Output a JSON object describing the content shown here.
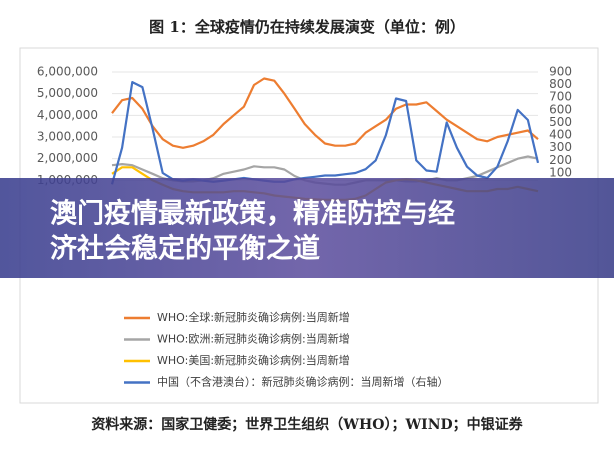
{
  "chart_data": {
    "type": "line",
    "title": "图 1：全球疫情仍在持续发展演变（单位：例）",
    "categories": [
      null,
      null,
      null,
      null,
      null,
      null,
      null,
      null,
      null,
      null,
      null,
      null,
      null,
      null,
      null,
      null,
      null,
      null,
      null,
      null,
      null,
      null,
      null,
      null,
      null,
      null,
      null,
      null,
      null,
      null,
      null,
      null,
      null,
      null,
      null,
      null,
      null,
      null,
      null,
      null,
      null,
      null,
      null
    ],
    "series": [
      {
        "name": "WHO:全球:新冠肺炎确诊病例:当周新增",
        "color": "#ed7d31",
        "values": [
          4100000,
          4700000,
          4800000,
          4300000,
          3500000,
          2900000,
          2600000,
          2500000,
          2600000,
          2800000,
          3100000,
          3600000,
          4000000,
          4400000,
          5400000,
          5700000,
          5600000,
          5000000,
          4300000,
          3600000,
          3100000,
          2700000,
          2600000,
          2600000,
          2700000,
          3200000,
          3500000,
          3800000,
          4300000,
          4500000,
          4500000,
          4600000,
          4200000,
          3800000,
          3500000,
          3200000,
          2900000,
          2800000,
          3000000,
          3100000,
          3200000,
          3300000,
          2900000
        ]
      },
      {
        "name": "WHO:欧洲:新冠肺炎确诊病例:当周新增",
        "color": "#a5a5a5",
        "values": [
          1700000,
          1750000,
          1700000,
          1500000,
          1300000,
          1100000,
          1000000,
          950000,
          950000,
          1000000,
          1100000,
          1300000,
          1400000,
          1500000,
          1650000,
          1600000,
          1600000,
          1500000,
          1200000,
          1000000,
          900000,
          850000,
          800000,
          800000,
          900000,
          1000000,
          1000000,
          1000000,
          1000000,
          950000,
          950000,
          1000000,
          1100000,
          1000000,
          1000000,
          1100000,
          1200000,
          1400000,
          1600000,
          1800000,
          2000000,
          2100000,
          2000000
        ]
      },
      {
        "name": "WHO:美国:新冠肺炎确诊病例:当周新增",
        "color": "#ffc000",
        "values": [
          1300000,
          1600000,
          1600000,
          1300000,
          1000000,
          800000,
          600000,
          500000,
          450000,
          450000,
          450000,
          450000,
          500000,
          500000,
          450000,
          400000,
          300000,
          250000,
          200000,
          150000,
          120000,
          100000,
          100000,
          100000,
          150000,
          300000,
          600000,
          900000,
          1000000,
          1050000,
          1000000,
          900000,
          800000,
          700000,
          600000,
          500000,
          500000,
          500000,
          600000,
          600000,
          700000,
          600000,
          500000
        ]
      },
      {
        "name": "中国（不含港澳台）：新冠肺炎确诊病例：当周新增（右轴）",
        "color": "#4472c4",
        "axis": "y2",
        "values": [
          10,
          300,
          820,
          780,
          450,
          100,
          50,
          40,
          50,
          40,
          30,
          40,
          50,
          60,
          50,
          40,
          30,
          30,
          50,
          60,
          70,
          80,
          80,
          90,
          100,
          130,
          200,
          400,
          690,
          670,
          200,
          120,
          110,
          500,
          300,
          150,
          80,
          60,
          150,
          350,
          600,
          520,
          180
        ]
      }
    ],
    "ylim": [
      0,
      6000000
    ],
    "yticks": [
      {
        "value": 1000000,
        "label": "1,000,000"
      },
      {
        "value": 2000000,
        "label": "2,000,000"
      },
      {
        "value": 3000000,
        "label": "3,000,000"
      },
      {
        "value": 4000000,
        "label": "4,000,000"
      },
      {
        "value": 5000000,
        "label": "5,000,000"
      },
      {
        "value": 6000000,
        "label": "6,000,000"
      }
    ],
    "y2lim": [
      0,
      900
    ],
    "y2ticks": [
      100,
      200,
      300,
      400,
      500,
      600,
      700,
      800,
      900
    ],
    "source": "资料来源：国家卫健委；世界卫生组织（WHO）；WIND；中银证券"
  },
  "banner": {
    "lines": [
      "澳门疫情最新政策，精准防控与经",
      "济社会稳定的平衡之道"
    ]
  }
}
